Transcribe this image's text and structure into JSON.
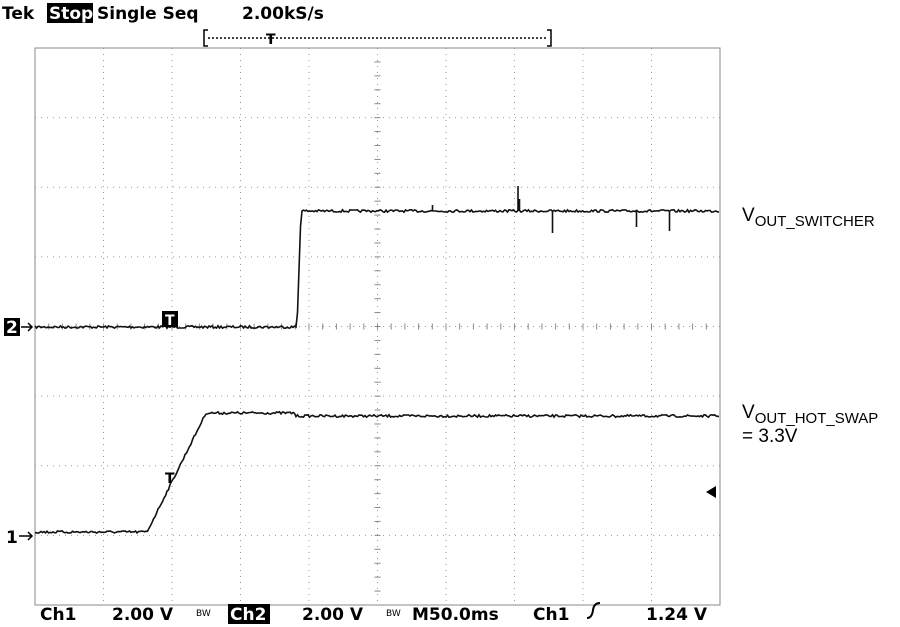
{
  "header": {
    "brand": "Tek",
    "state": "Stop:",
    "mode": "Single Seq",
    "sample_rate": "2.00kS/s"
  },
  "markers": {
    "trigger": "T",
    "ch1": "1",
    "ch2": "2"
  },
  "labels": {
    "switcher": {
      "main": "V",
      "sub": "OUT_SWITCHER"
    },
    "hot_swap": {
      "main": "V",
      "sub": "OUT_HOT_SWAP",
      "value": "= 3.3V"
    }
  },
  "footer": {
    "ch1": "Ch1",
    "ch1_scale": "2.00 V",
    "bandwidth": "BW",
    "ch2": "Ch2",
    "ch2_scale": "2.00 V",
    "timebase": "M50.0ms",
    "trigger_source": "Ch1",
    "trigger_level": "1.24 V"
  }
}
